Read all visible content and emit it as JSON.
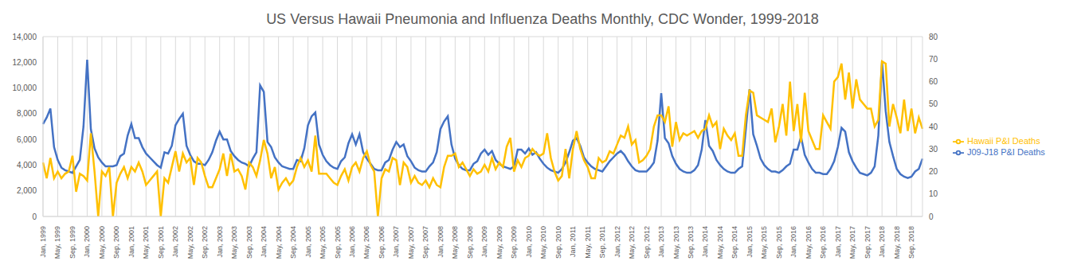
{
  "chart_data": {
    "type": "line",
    "title": "US Versus Hawaii Pneumonia and Influenza Deaths Monthly, CDC Wonder, 1999-2018",
    "categories": [
      "Jan, 1999",
      null,
      null,
      null,
      "May, 1999",
      null,
      null,
      null,
      "Sep, 1999",
      null,
      null,
      null,
      "Jan, 2000",
      null,
      null,
      null,
      "May, 2000",
      null,
      null,
      null,
      "Sep, 2000",
      null,
      null,
      null,
      "Jan, 2001",
      null,
      null,
      null,
      "May, 2001",
      null,
      null,
      null,
      "Sep, 2001",
      null,
      null,
      null,
      "Jan, 2002",
      null,
      null,
      null,
      "May, 2002",
      null,
      null,
      null,
      "Sep, 2002",
      null,
      null,
      null,
      "Jan, 2003",
      null,
      null,
      null,
      "May, 2003",
      null,
      null,
      null,
      "Sep, 2003",
      null,
      null,
      null,
      "Jan, 2004",
      null,
      null,
      null,
      "May, 2004",
      null,
      null,
      null,
      "Sep, 2004",
      null,
      null,
      null,
      "Jan, 2005",
      null,
      null,
      null,
      "May, 2005",
      null,
      null,
      null,
      "Sep, 2005",
      null,
      null,
      null,
      "Jan, 2006",
      null,
      null,
      null,
      "May, 2006",
      null,
      null,
      null,
      "Sep, 2006",
      null,
      null,
      null,
      "Jan, 2007",
      null,
      null,
      null,
      "May, 2007",
      null,
      null,
      null,
      "Sep, 2007",
      null,
      null,
      null,
      "Jan, 2008",
      null,
      null,
      null,
      "May, 2008",
      null,
      null,
      null,
      "Sep, 2008",
      null,
      null,
      null,
      "Jan, 2009",
      null,
      null,
      null,
      "May, 2009",
      null,
      null,
      null,
      "Sep, 2009",
      null,
      null,
      null,
      "Jan, 2010",
      null,
      null,
      null,
      "May, 2010",
      null,
      null,
      null,
      "Sep, 2010",
      null,
      null,
      null,
      "Jan, 2011",
      null,
      null,
      null,
      "May, 2011",
      null,
      null,
      null,
      "Sep, 2011",
      null,
      null,
      null,
      "Jan, 2012",
      null,
      null,
      null,
      "May, 2012",
      null,
      null,
      null,
      "Sep, 2012",
      null,
      null,
      null,
      "Jan, 2013",
      null,
      null,
      null,
      "May, 2013",
      null,
      null,
      null,
      "Sep, 2013",
      null,
      null,
      null,
      "Jan, 2014",
      null,
      null,
      null,
      "May, 2014",
      null,
      null,
      null,
      "Sep, 2014",
      null,
      null,
      null,
      "Jan, 2015",
      null,
      null,
      null,
      "May, 2015",
      null,
      null,
      null,
      "Sep, 2015",
      null,
      null,
      null,
      "Jan, 2016",
      null,
      null,
      null,
      "May, 2016",
      null,
      null,
      null,
      "Sep, 2016",
      null,
      null,
      null,
      "Jan, 2017",
      null,
      null,
      null,
      "May, 2017",
      null,
      null,
      null,
      "Sep, 2017",
      null,
      null,
      null,
      "Jan, 2018",
      null,
      null,
      null,
      "May, 2018",
      null,
      null,
      null,
      "Sep, 2018",
      null,
      null,
      null
    ],
    "series": [
      {
        "name": "J09-J18 P&I Deaths",
        "color": "#4472c4",
        "values": [
          7200,
          7700,
          8400,
          5400,
          4400,
          3800,
          3600,
          3500,
          3400,
          3900,
          4400,
          7000,
          12200,
          6800,
          5300,
          4600,
          4200,
          3900,
          3900,
          3900,
          4000,
          4700,
          4900,
          6300,
          7200,
          6100,
          6100,
          5400,
          4900,
          4600,
          4300,
          4000,
          3800,
          5000,
          4900,
          5500,
          7100,
          7600,
          8000,
          5500,
          4800,
          4300,
          4100,
          4100,
          4000,
          4400,
          5000,
          5900,
          6600,
          6000,
          6000,
          5100,
          4700,
          4400,
          4200,
          4100,
          3900,
          4500,
          5000,
          10200,
          9700,
          5800,
          5400,
          4600,
          4200,
          3900,
          3800,
          3700,
          3700,
          4400,
          4300,
          5300,
          7100,
          7800,
          8100,
          5600,
          4800,
          4300,
          4000,
          3800,
          3700,
          4300,
          4600,
          5700,
          6400,
          5600,
          6400,
          5000,
          4500,
          4100,
          3700,
          3600,
          3600,
          4200,
          4400,
          5200,
          5800,
          5400,
          5600,
          4700,
          4300,
          3800,
          3600,
          3500,
          3500,
          3900,
          4200,
          5000,
          6800,
          7400,
          7800,
          5600,
          4500,
          4000,
          3700,
          3600,
          3600,
          4100,
          4300,
          4900,
          5200,
          4800,
          5100,
          4400,
          4100,
          3900,
          3800,
          3700,
          3900,
          5200,
          5200,
          4900,
          5300,
          4800,
          5000,
          4500,
          4100,
          3800,
          3600,
          3500,
          3400,
          3700,
          4200,
          5000,
          5900,
          6100,
          5500,
          4600,
          4200,
          3900,
          3700,
          3600,
          3500,
          3900,
          4300,
          4600,
          4900,
          5100,
          4800,
          4300,
          3900,
          3600,
          3500,
          3500,
          3500,
          3800,
          4200,
          5900,
          9600,
          6100,
          5700,
          4700,
          4100,
          3700,
          3500,
          3400,
          3400,
          3600,
          4000,
          5200,
          7500,
          5500,
          5100,
          4400,
          4000,
          3700,
          3500,
          3400,
          3400,
          3700,
          3900,
          6800,
          9900,
          6400,
          5500,
          4500,
          4000,
          3700,
          3500,
          3500,
          3400,
          3600,
          3900,
          4100,
          5200,
          5200,
          6200,
          4800,
          4200,
          3700,
          3400,
          3400,
          3300,
          3300,
          3700,
          4300,
          5400,
          6900,
          6600,
          5000,
          4300,
          3800,
          3400,
          3300,
          3200,
          3400,
          3900,
          6300,
          12100,
          8200,
          5800,
          4700,
          3700,
          3300,
          3100,
          3000,
          3100,
          3500,
          3700,
          4500
        ]
      },
      {
        "name": "Hawaii P&I Deaths",
        "color": "#ffc000",
        "axis": "y2",
        "values": [
          24,
          17,
          26,
          17,
          20,
          17,
          19,
          20,
          27,
          11,
          19,
          18,
          16,
          37,
          20,
          0,
          20,
          18,
          22,
          0,
          15,
          19,
          22,
          17,
          22,
          20,
          24,
          20,
          14,
          16,
          18,
          20,
          0,
          17,
          15,
          22,
          29,
          20,
          28,
          24,
          26,
          14,
          26,
          24,
          18,
          13,
          13,
          17,
          21,
          28,
          18,
          28,
          20,
          21,
          18,
          12,
          24,
          22,
          18,
          25,
          34,
          28,
          17,
          22,
          12,
          15,
          17,
          14,
          16,
          22,
          26,
          22,
          25,
          20,
          36,
          19,
          19,
          19,
          17,
          15,
          14,
          18,
          21,
          16,
          22,
          24,
          20,
          26,
          29,
          23,
          20,
          0,
          17,
          21,
          20,
          26,
          25,
          14,
          24,
          22,
          15,
          18,
          15,
          14,
          16,
          13,
          17,
          14,
          13,
          22,
          27,
          27,
          28,
          22,
          24,
          21,
          18,
          21,
          19,
          20,
          23,
          20,
          26,
          21,
          24,
          22,
          31,
          35,
          20,
          25,
          22,
          26,
          27,
          30,
          28,
          27,
          28,
          37,
          26,
          20,
          16,
          18,
          30,
          17,
          30,
          38,
          30,
          25,
          22,
          17,
          17,
          26,
          24,
          25,
          29,
          28,
          32,
          36,
          35,
          40,
          32,
          34,
          24,
          25,
          27,
          30,
          40,
          45,
          45,
          42,
          49,
          31,
          42,
          34,
          37,
          36,
          37,
          38,
          35,
          38,
          39,
          45,
          40,
          42,
          30,
          39,
          36,
          34,
          37,
          27,
          27,
          45,
          56,
          55,
          45,
          44,
          43,
          42,
          48,
          33,
          40,
          50,
          36,
          60,
          38,
          50,
          33,
          55,
          38,
          34,
          30,
          30,
          45,
          42,
          39,
          60,
          62,
          68,
          52,
          64,
          48,
          61,
          52,
          50,
          48,
          48,
          40,
          43,
          69,
          68,
          40,
          50,
          44,
          37,
          52,
          38,
          48,
          37,
          44,
          39
        ]
      }
    ],
    "ylim": [
      0,
      14000
    ],
    "yticks": [
      0,
      {
        "value": 2000,
        "label": "2,000"
      },
      {
        "value": 4000,
        "label": "4,000"
      },
      {
        "value": 6000,
        "label": "6,000"
      },
      {
        "value": 8000,
        "label": "8,000"
      },
      {
        "value": 10000,
        "label": "10,000"
      },
      {
        "value": 12000,
        "label": "12,000"
      },
      {
        "value": 14000,
        "label": "14,000"
      }
    ],
    "y2lim": [
      0,
      80
    ],
    "y2ticks": [
      0,
      10,
      20,
      30,
      40,
      50,
      60,
      70,
      80
    ],
    "grid": true,
    "legend": "right"
  }
}
